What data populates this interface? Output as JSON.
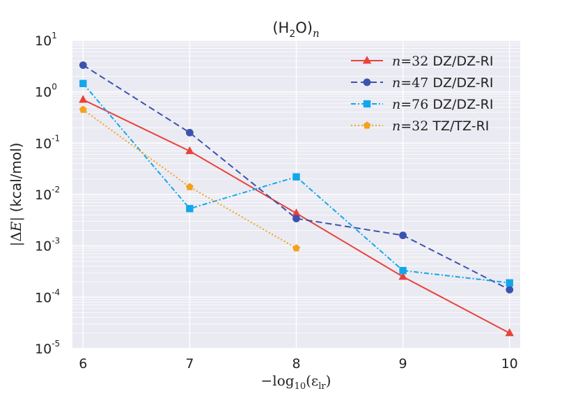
{
  "chart_data": {
    "type": "line",
    "title": "(H2O)n",
    "title_parts": {
      "open": "(H",
      "sub": "2",
      "mid": "O)",
      "italic_sub": "n"
    },
    "xlabel": "−log10(εlr)",
    "xlabel_parts": {
      "prefix": "−log",
      "sub": "10",
      "arg_open": "(ε",
      "arg_sub": "lr",
      "arg_close": ")"
    },
    "ylabel": "|ΔE| (kcal/mol)",
    "ylabel_parts": {
      "abs_open": "|Δ",
      "var": "E",
      "abs_close": "|",
      "unit": " (kcal/mol)"
    },
    "yscale": "log",
    "xlim": [
      5.9,
      10.1
    ],
    "ylim": [
      1e-05,
      10
    ],
    "x_ticks": [
      "6",
      "7",
      "8",
      "9",
      "10"
    ],
    "y_ticks": [
      {
        "base": "10",
        "exp": "1"
      },
      {
        "base": "10",
        "exp": "0"
      },
      {
        "base": "10",
        "exp": "-1"
      },
      {
        "base": "10",
        "exp": "-2"
      },
      {
        "base": "10",
        "exp": "-3"
      },
      {
        "base": "10",
        "exp": "-4"
      },
      {
        "base": "10",
        "exp": "-5"
      }
    ],
    "grid": true,
    "legend_position": "top-right",
    "series": [
      {
        "name": "n=32 DZ/DZ-RI",
        "n_label": "n",
        "n_value": "=32",
        "basis": " DZ/DZ-RI",
        "color": "#e8433b",
        "marker": "triangle",
        "dash": "",
        "x": [
          6,
          7,
          8,
          9,
          10
        ],
        "y": [
          0.7,
          0.07,
          0.0043,
          0.00025,
          2e-05
        ]
      },
      {
        "name": "n=47 DZ/DZ-RI",
        "n_label": "n",
        "n_value": "=47",
        "basis": " DZ/DZ-RI",
        "color": "#3c52b0",
        "marker": "circle",
        "dash": "9,5",
        "x": [
          6,
          7,
          8,
          9,
          10
        ],
        "y": [
          3.3,
          0.16,
          0.0034,
          0.0016,
          0.00014
        ]
      },
      {
        "name": "n=76 DZ/DZ-RI",
        "n_label": "n",
        "n_value": "=76",
        "basis": " DZ/DZ-RI",
        "color": "#12a6ea",
        "marker": "square",
        "dash": "7,3,2,3",
        "x": [
          6,
          7,
          8,
          9,
          10
        ],
        "y": [
          1.45,
          0.0053,
          0.022,
          0.00033,
          0.00019
        ]
      },
      {
        "name": "n=32 TZ/TZ-RI",
        "n_label": "n",
        "n_value": "=32",
        "basis": " TZ/TZ-RI",
        "color": "#f3a21b",
        "marker": "pentagon",
        "dash": "2,3",
        "x": [
          6,
          7,
          8
        ],
        "y": [
          0.45,
          0.014,
          0.0009
        ]
      }
    ]
  }
}
